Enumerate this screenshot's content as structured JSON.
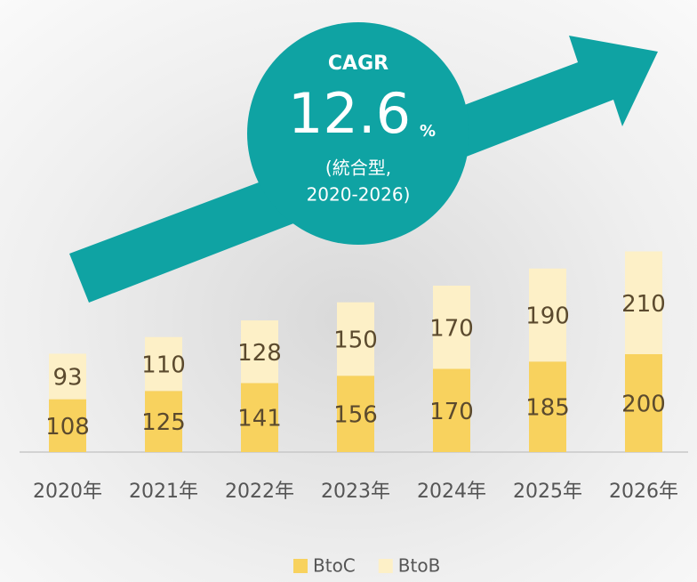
{
  "chart_data": {
    "type": "stacked_bar",
    "categories": [
      "2020年",
      "2021年",
      "2022年",
      "2023年",
      "2024年",
      "2025年",
      "2026年"
    ],
    "series": [
      {
        "name": "BtoC",
        "color": "#f8d25e",
        "values": [
          108,
          125,
          141,
          156,
          170,
          185,
          200
        ]
      },
      {
        "name": "BtoB",
        "color": "#fdf0c7",
        "values": [
          93,
          110,
          128,
          150,
          170,
          190,
          210
        ]
      }
    ],
    "legend": "bottom",
    "annotation": {
      "label": "CAGR",
      "value": 12.6,
      "unit": "%",
      "note": [
        "(統合型,",
        "2020-2026)"
      ],
      "color": "#0fa3a3"
    }
  }
}
